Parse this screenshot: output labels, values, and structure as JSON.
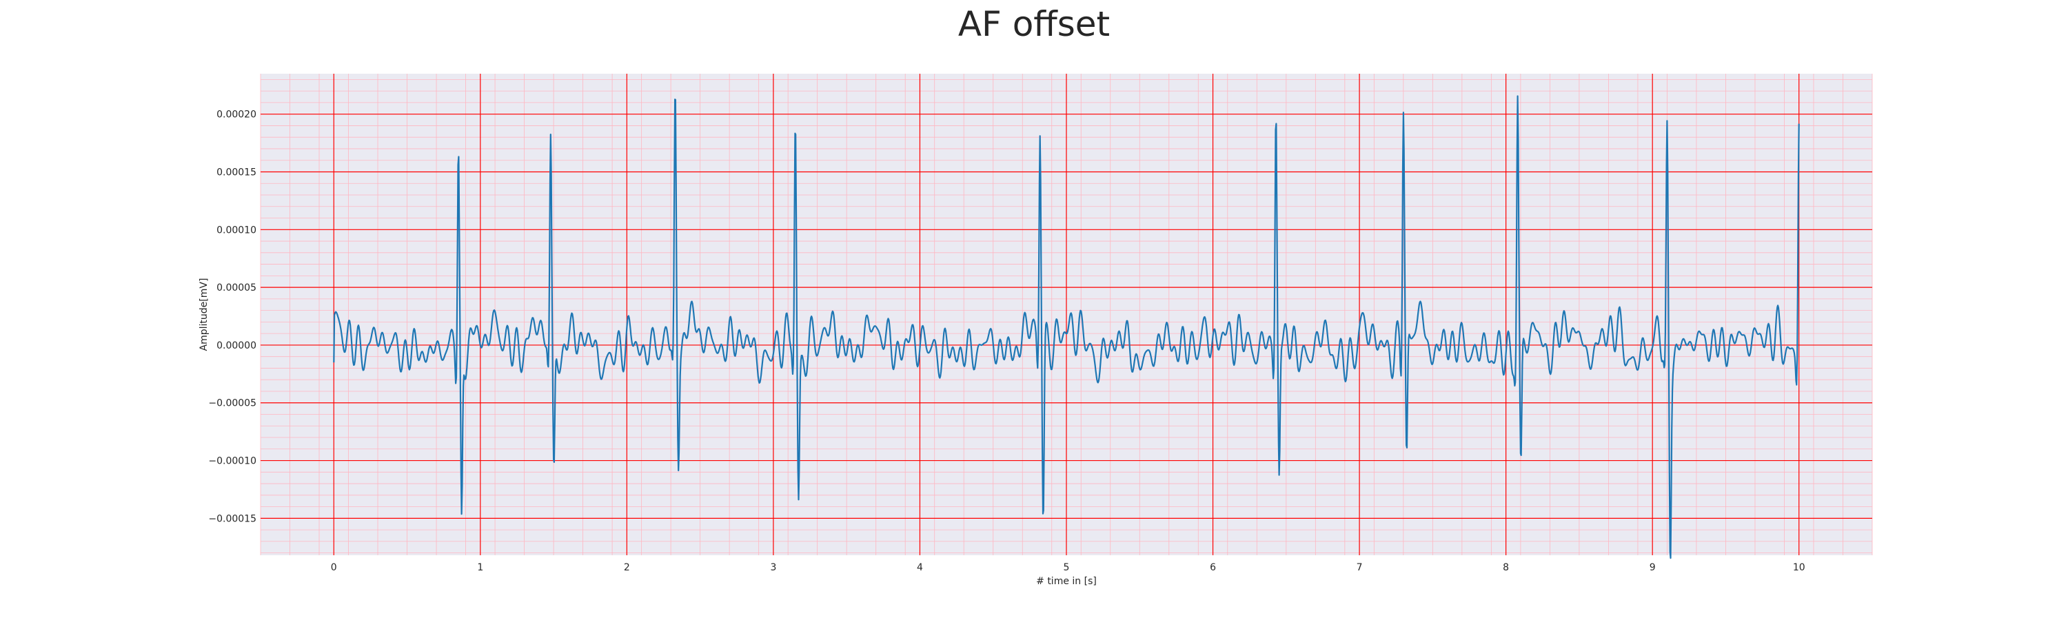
{
  "chart_data": {
    "type": "line",
    "title": "AF offset",
    "xlabel": "# time in [s]",
    "ylabel": "Amplitude[mV]",
    "xlim": [
      -0.5,
      10.5
    ],
    "ylim": [
      -0.000182,
      0.000235
    ],
    "grid": true,
    "minor_grid": true,
    "x_ticks": [
      0,
      1,
      2,
      3,
      4,
      5,
      6,
      7,
      8,
      9,
      10
    ],
    "x_tick_labels": [
      "0",
      "1",
      "2",
      "3",
      "4",
      "5",
      "6",
      "7",
      "8",
      "9",
      "10"
    ],
    "y_ticks": [
      0.0002,
      0.00015,
      0.0001,
      5e-05,
      0.0,
      -5e-05,
      -0.0001,
      -0.00015
    ],
    "y_tick_labels": [
      "0.00020",
      "0.00015",
      "0.00010",
      "0.00005",
      "0.00000",
      "−0.00005",
      "−0.00010",
      "−0.00015"
    ],
    "series": [
      {
        "color": "#1f77b4",
        "r_peaks": [
          {
            "t": 0.85,
            "peak": 0.000179,
            "trough": -0.000155
          },
          {
            "t": 1.48,
            "peak": 0.000185,
            "trough": -0.00011
          },
          {
            "t": 2.33,
            "peak": 0.000211,
            "trough": -0.0001
          },
          {
            "t": 3.15,
            "peak": 0.000208,
            "trough": -0.000118
          },
          {
            "t": 4.82,
            "peak": 0.000195,
            "trough": -0.000158
          },
          {
            "t": 6.43,
            "peak": 0.000206,
            "trough": -0.00012
          },
          {
            "t": 7.3,
            "peak": 0.000204,
            "trough": -0.00012
          },
          {
            "t": 8.08,
            "peak": 0.000215,
            "trough": -0.000116
          },
          {
            "t": 9.1,
            "peak": 0.000193,
            "trough": -0.000162
          },
          {
            "t": 10.0,
            "peak": 0.000201,
            "trough": 1e-05
          }
        ]
      }
    ]
  },
  "colors": {
    "axes_bg": "#eaeaf2",
    "major_grid": "#ff0000",
    "minor_grid": "#ffb6c1",
    "line": "#1f77b4"
  }
}
